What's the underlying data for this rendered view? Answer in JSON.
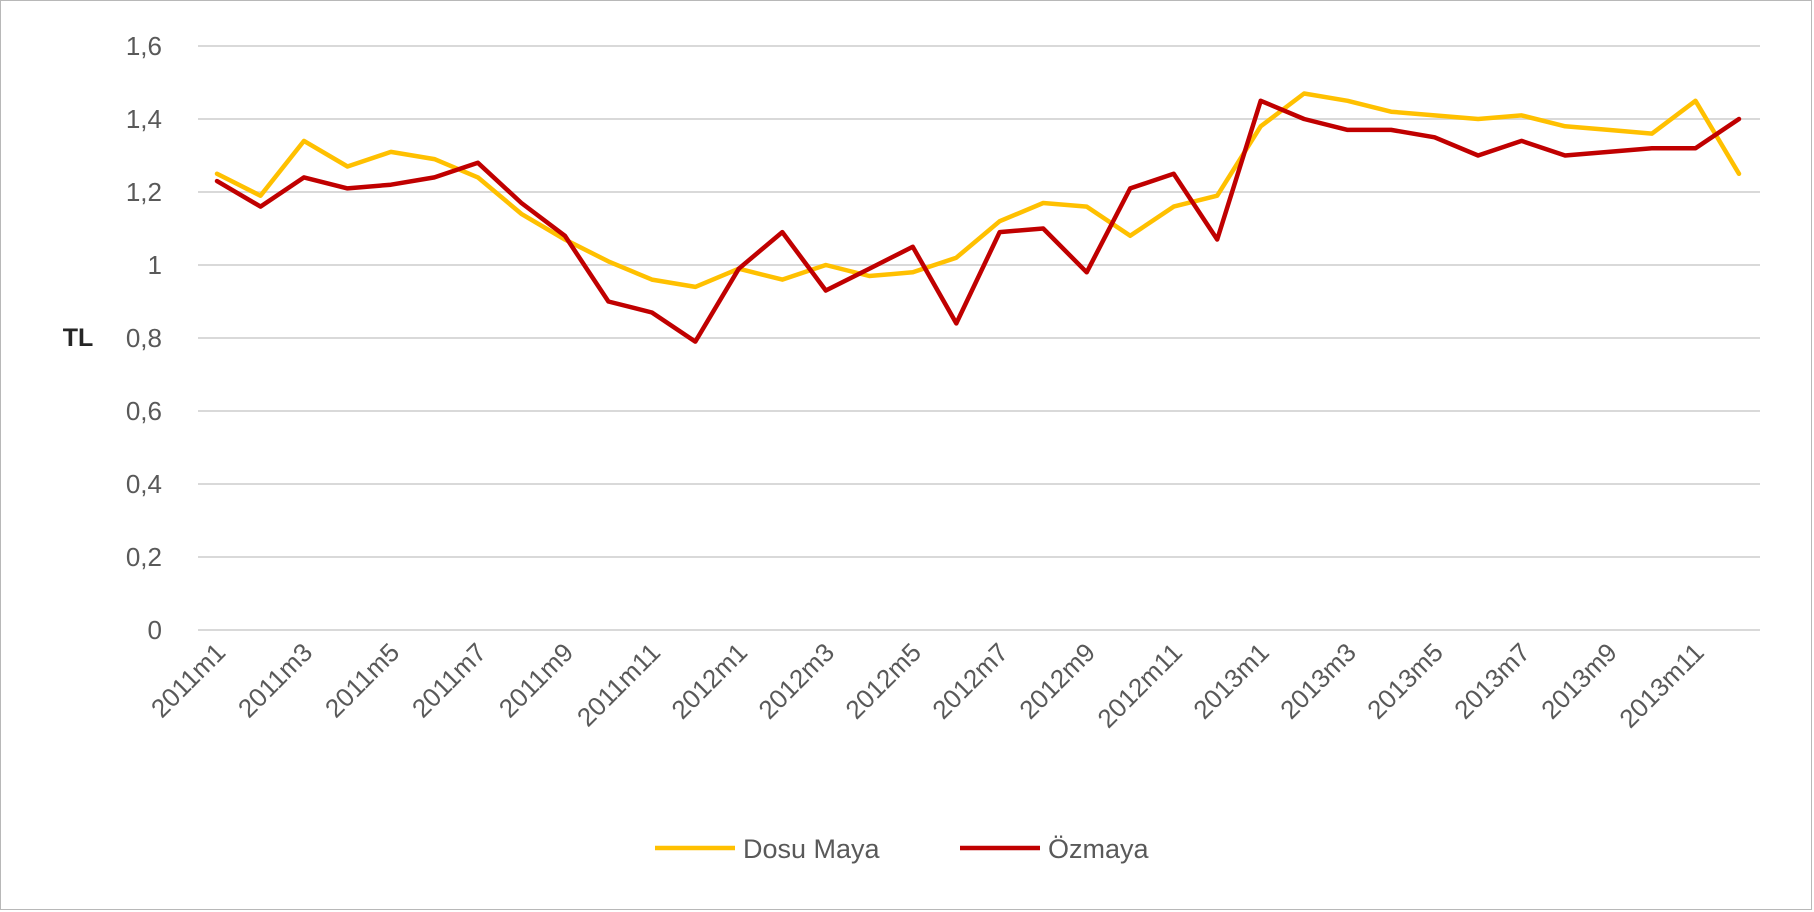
{
  "chart_data": {
    "type": "line",
    "title": "",
    "xlabel": "",
    "ylabel": "TL",
    "ylim": [
      0,
      1.6
    ],
    "yticks": [
      "0",
      "0,2",
      "0,4",
      "0,6",
      "0,8",
      "1",
      "1,2",
      "1,4",
      "1,6"
    ],
    "categories": [
      "2011m1",
      "2011m2",
      "2011m3",
      "2011m4",
      "2011m5",
      "2011m6",
      "2011m7",
      "2011m8",
      "2011m9",
      "2011m10",
      "2011m11",
      "2011m12",
      "2012m1",
      "2012m2",
      "2012m3",
      "2012m4",
      "2012m5",
      "2012m6",
      "2012m7",
      "2012m8",
      "2012m9",
      "2012m10",
      "2012m11",
      "2012m12",
      "2013m1",
      "2013m2",
      "2013m3",
      "2013m4",
      "2013m5",
      "2013m6",
      "2013m7",
      "2013m8",
      "2013m9",
      "2013m10",
      "2013m11",
      "2013m12"
    ],
    "tick_labels": [
      "2011m1",
      "2011m3",
      "2011m5",
      "2011m7",
      "2011m9",
      "2011m11",
      "2012m1",
      "2012m3",
      "2012m5",
      "2012m7",
      "2012m9",
      "2012m11",
      "2013m1",
      "2013m3",
      "2013m5",
      "2013m7",
      "2013m9",
      "2013m11"
    ],
    "grid": true,
    "legend": "bottom",
    "series": [
      {
        "name": "Dosu Maya",
        "color": "#FFC000",
        "values": [
          1.25,
          1.19,
          1.34,
          1.27,
          1.31,
          1.29,
          1.24,
          1.14,
          1.07,
          1.01,
          0.96,
          0.94,
          0.99,
          0.96,
          1.0,
          0.97,
          0.98,
          1.02,
          1.12,
          1.17,
          1.16,
          1.08,
          1.16,
          1.19,
          1.38,
          1.47,
          1.45,
          1.42,
          1.41,
          1.4,
          1.41,
          1.38,
          1.37,
          1.36,
          1.45,
          1.25
        ]
      },
      {
        "name": "Özmaya",
        "color": "#C00000",
        "values": [
          1.23,
          1.16,
          1.24,
          1.21,
          1.22,
          1.24,
          1.28,
          1.17,
          1.08,
          0.9,
          0.87,
          0.79,
          0.99,
          1.09,
          0.93,
          0.99,
          1.05,
          0.84,
          1.09,
          1.1,
          0.98,
          1.21,
          1.25,
          1.07,
          1.45,
          1.4,
          1.37,
          1.37,
          1.35,
          1.3,
          1.34,
          1.3,
          1.31,
          1.32,
          1.32,
          1.4
        ]
      }
    ]
  }
}
